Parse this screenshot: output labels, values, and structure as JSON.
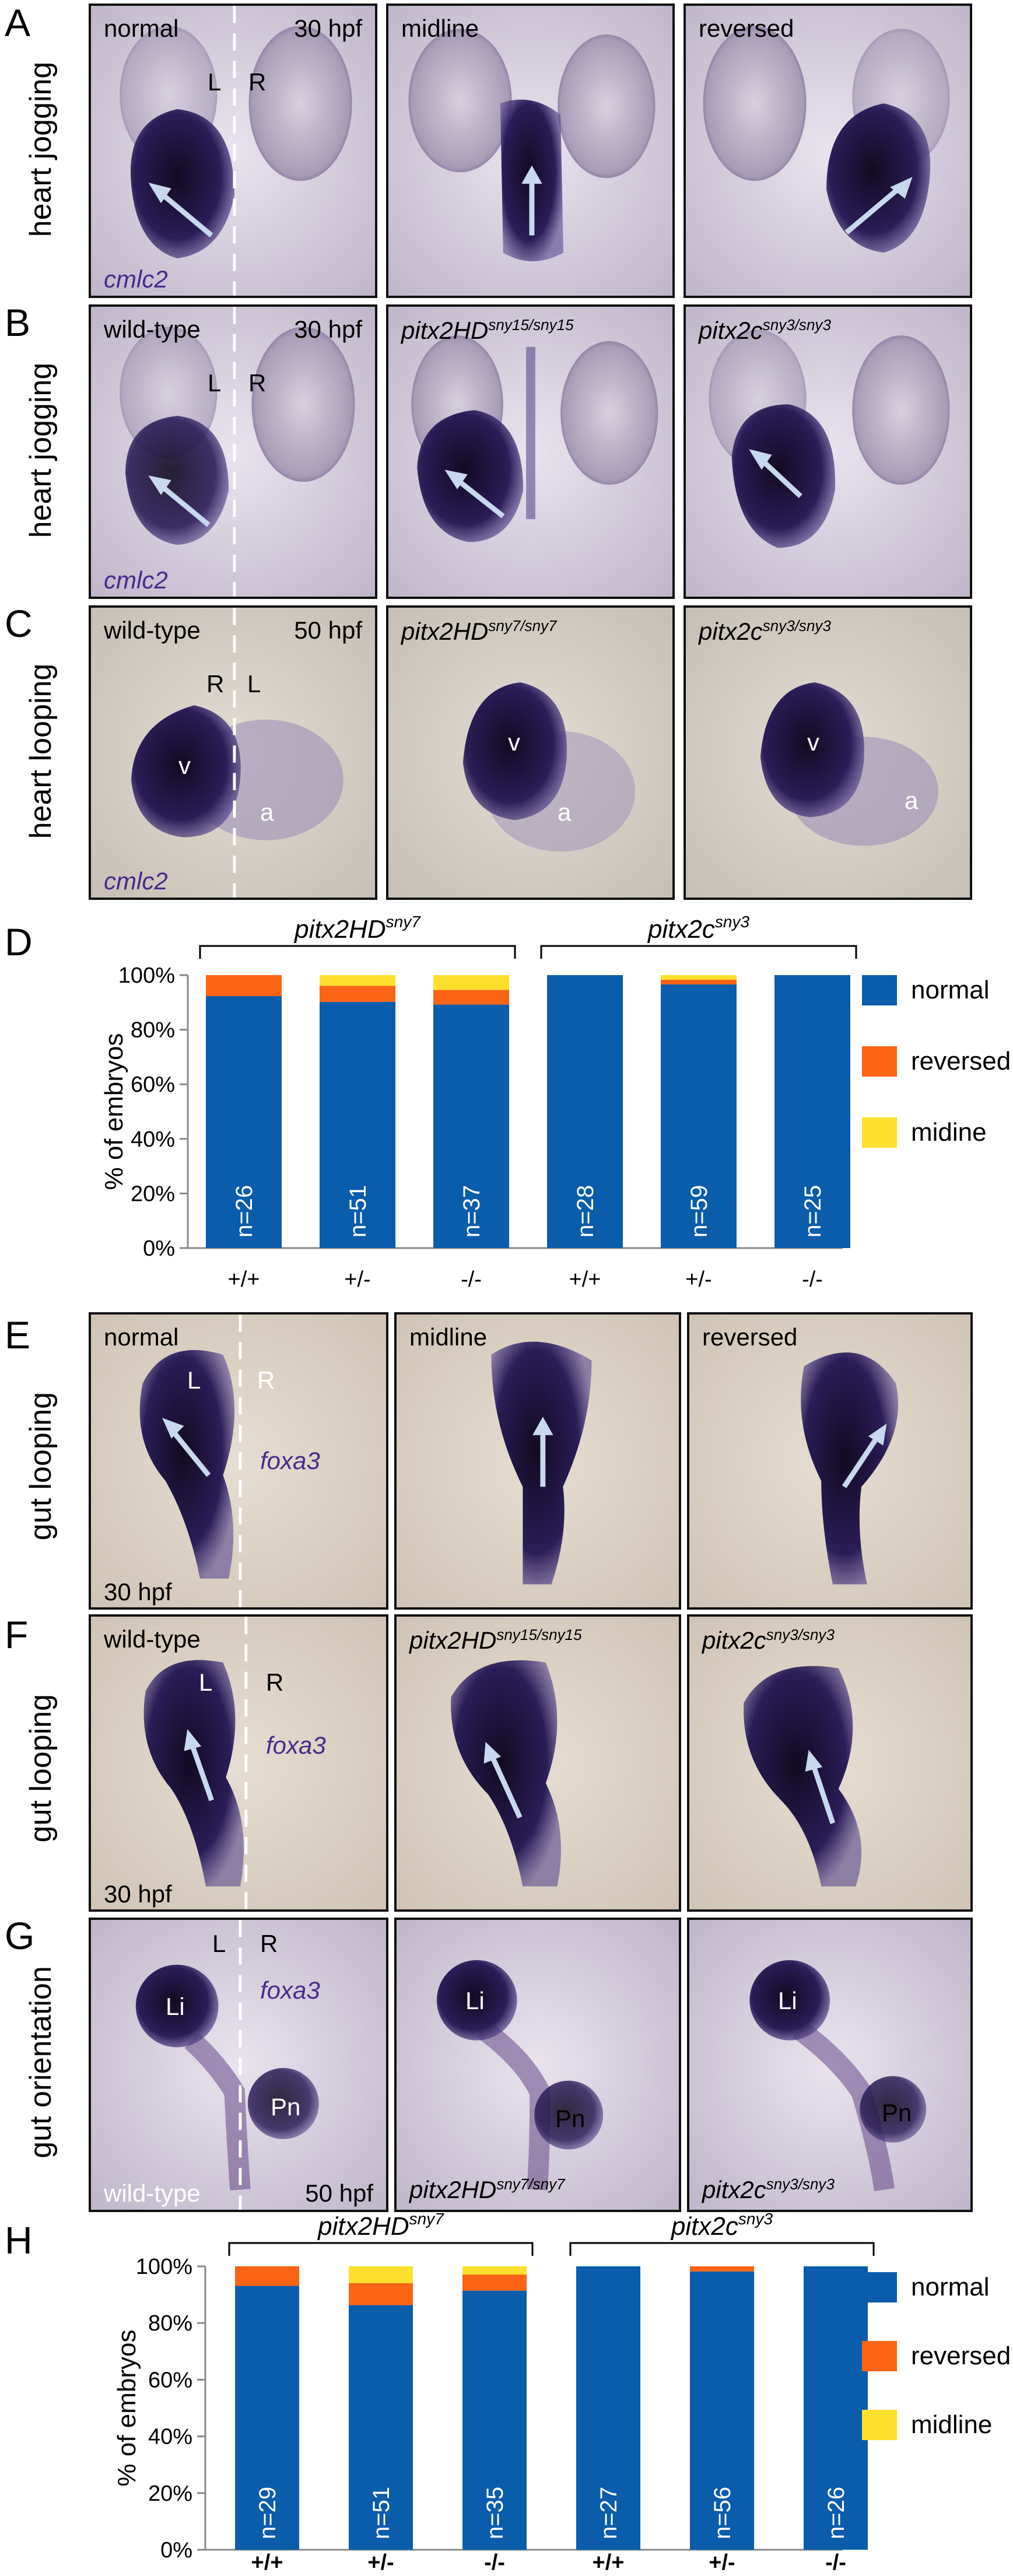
{
  "panels": {
    "A": {
      "letter": "A",
      "row_label": "heart jogging",
      "images": [
        {
          "tl": "normal",
          "tr": "30 hpf",
          "L": "L",
          "R": "R",
          "probe": "cmlc2"
        },
        {
          "tl": "midline"
        },
        {
          "tl": "reversed"
        }
      ]
    },
    "B": {
      "letter": "B",
      "row_label": "heart jogging",
      "images": [
        {
          "tl": "wild-type",
          "tr": "30 hpf",
          "L": "L",
          "R": "R",
          "probe": "cmlc2"
        },
        {
          "gene": "pitx2HD",
          "allele": "sny15/sny15"
        },
        {
          "gene": "pitx2c",
          "allele": "sny3/sny3"
        }
      ]
    },
    "C": {
      "letter": "C",
      "row_label": "heart looping",
      "images": [
        {
          "tl": "wild-type",
          "tr": "50 hpf",
          "R": "R",
          "L": "L",
          "v": "v",
          "a": "a",
          "probe": "cmlc2"
        },
        {
          "gene": "pitx2HD",
          "allele": "sny7/sny7",
          "v": "v",
          "a": "a"
        },
        {
          "gene": "pitx2c",
          "allele": "sny3/sny3",
          "v": "v",
          "a": "a"
        }
      ]
    },
    "E": {
      "letter": "E",
      "row_label": "gut looping",
      "images": [
        {
          "tl": "normal",
          "L": "L",
          "R": "R",
          "probe": "foxa3",
          "bl": "30 hpf"
        },
        {
          "tl": "midline"
        },
        {
          "tl": "reversed"
        }
      ]
    },
    "F": {
      "letter": "F",
      "row_label": "gut looping",
      "images": [
        {
          "tl": "wild-type",
          "L": "L",
          "R": "R",
          "probe": "foxa3",
          "bl": "30 hpf"
        },
        {
          "gene": "pitx2HD",
          "allele": "sny15/sny15"
        },
        {
          "gene": "pitx2c",
          "allele": "sny3/sny3"
        }
      ]
    },
    "G": {
      "letter": "G",
      "row_label": "gut orientation",
      "images": [
        {
          "L": "L",
          "R": "R",
          "probe": "foxa3",
          "Li": "Li",
          "Pn": "Pn",
          "bl": "wild-type",
          "br": "50 hpf"
        },
        {
          "Li": "Li",
          "Pn": "Pn",
          "gene": "pitx2HD",
          "allele": "sny7/sny7"
        },
        {
          "Li": "Li",
          "Pn": "Pn",
          "gene": "pitx2c",
          "allele": "sny3/sny3"
        }
      ]
    }
  },
  "chart_data": [
    {
      "panel": "D",
      "type": "bar",
      "stacked": true,
      "ylabel": "% of embryos",
      "yticks": [
        "0%",
        "20%",
        "40%",
        "60%",
        "80%",
        "100%"
      ],
      "ylim": [
        0,
        100
      ],
      "categories": [
        "+/+",
        "+/-",
        "-/-",
        "+/+",
        "+/-",
        "-/-"
      ],
      "groups": [
        {
          "gene": "pitx2HD",
          "allele": "sny7",
          "span": [
            0,
            2
          ]
        },
        {
          "gene": "pitx2c",
          "allele": "sny3",
          "span": [
            3,
            5
          ]
        }
      ],
      "n_labels": [
        "n=26",
        "n=51",
        "n=37",
        "n=28",
        "n=59",
        "n=25"
      ],
      "series": [
        {
          "name": "normal",
          "color": "#0b5cab",
          "values": [
            92.3,
            90.2,
            89.2,
            100,
            96.6,
            100
          ]
        },
        {
          "name": "reversed",
          "color": "#fa6414",
          "values": [
            7.7,
            5.9,
            5.4,
            0,
            1.7,
            0
          ]
        },
        {
          "name": "midine",
          "color": "#fce02d",
          "values": [
            0,
            3.9,
            5.4,
            0,
            1.7,
            0
          ]
        }
      ],
      "legend": "right"
    },
    {
      "panel": "H",
      "type": "bar",
      "stacked": true,
      "ylabel": "% of embryos",
      "yticks": [
        "0%",
        "20%",
        "40%",
        "60%",
        "80%",
        "100%"
      ],
      "ylim": [
        0,
        100
      ],
      "categories": [
        "+/+",
        "+/-",
        "-/-",
        "+/+",
        "+/-",
        "-/-"
      ],
      "groups": [
        {
          "gene": "pitx2HD",
          "allele": "sny7",
          "span": [
            0,
            2
          ]
        },
        {
          "gene": "pitx2c",
          "allele": "sny3",
          "span": [
            3,
            5
          ]
        }
      ],
      "n_labels": [
        "n=29",
        "n=51",
        "n=35",
        "n=27",
        "n=56",
        "n=26"
      ],
      "series": [
        {
          "name": "normal",
          "color": "#0b5cab",
          "values": [
            93.1,
            86.3,
            91.4,
            100,
            98.2,
            100
          ]
        },
        {
          "name": "reversed",
          "color": "#fa6414",
          "values": [
            6.9,
            7.8,
            5.7,
            0,
            1.8,
            0
          ]
        },
        {
          "name": "midline",
          "color": "#fce02d",
          "values": [
            0,
            5.9,
            2.9,
            0,
            0,
            0
          ]
        }
      ],
      "legend": "right"
    }
  ],
  "chart_letters": {
    "D": "D",
    "H": "H"
  }
}
